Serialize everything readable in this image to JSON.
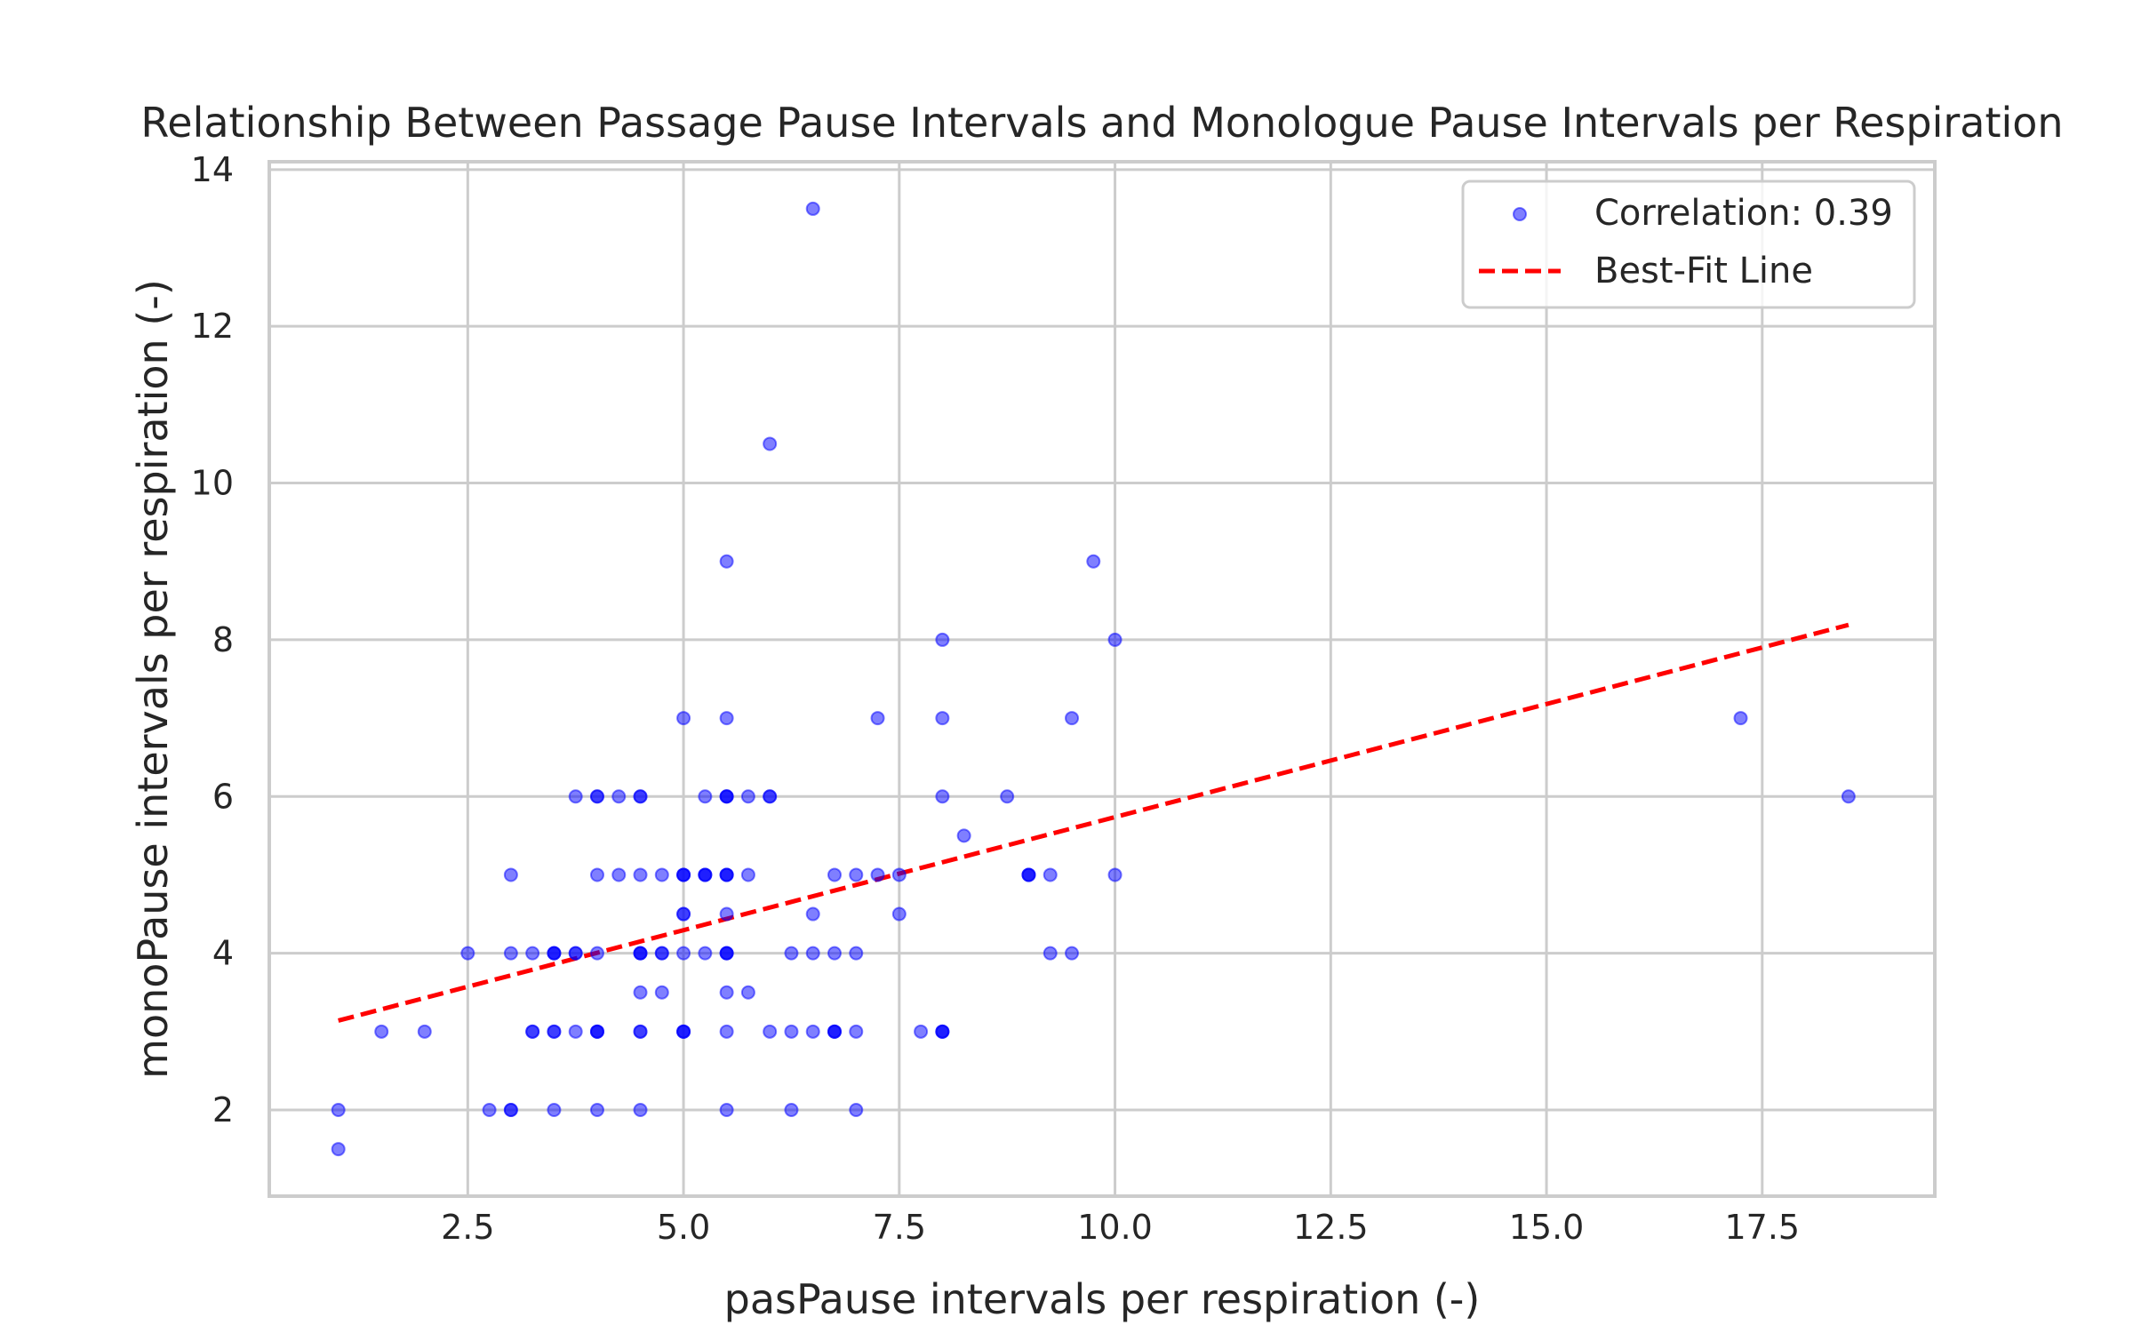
{
  "chart_data": {
    "type": "scatter",
    "title": "Relationship Between Passage Pause Intervals and Monologue Pause Intervals per Respiration",
    "xlabel": "pasPause intervals per respiration (-)",
    "ylabel": "monoPause intervals per respiration (-)",
    "xlim": [
      0.2,
      19.5
    ],
    "ylim": [
      0.9,
      14.1
    ],
    "xticks": [
      2.5,
      5.0,
      7.5,
      10.0,
      12.5,
      15.0,
      17.5
    ],
    "xtick_labels": [
      "2.5",
      "5.0",
      "7.5",
      "10.0",
      "12.5",
      "15.0",
      "17.5"
    ],
    "yticks": [
      2,
      4,
      6,
      8,
      10,
      12,
      14
    ],
    "ytick_labels": [
      "2",
      "4",
      "6",
      "8",
      "10",
      "12",
      "14"
    ],
    "grid": true,
    "legend_position": "top-right",
    "series": [
      {
        "name": "Correlation: 0.39",
        "kind": "scatter",
        "color": "#0000ff",
        "opacity": 0.5,
        "points": [
          [
            1.0,
            2.0
          ],
          [
            1.0,
            1.5
          ],
          [
            1.5,
            3.0
          ],
          [
            2.0,
            3.0
          ],
          [
            2.5,
            4.0
          ],
          [
            2.75,
            2.0
          ],
          [
            3.0,
            2.0
          ],
          [
            3.0,
            2.0
          ],
          [
            3.0,
            4.0
          ],
          [
            3.0,
            5.0
          ],
          [
            3.25,
            3.0
          ],
          [
            3.25,
            3.0
          ],
          [
            3.25,
            4.0
          ],
          [
            3.5,
            2.0
          ],
          [
            3.5,
            3.0
          ],
          [
            3.5,
            3.0
          ],
          [
            3.5,
            4.0
          ],
          [
            3.5,
            4.0
          ],
          [
            3.5,
            4.0
          ],
          [
            3.75,
            3.0
          ],
          [
            3.75,
            4.0
          ],
          [
            3.75,
            4.0
          ],
          [
            3.75,
            6.0
          ],
          [
            4.0,
            2.0
          ],
          [
            4.0,
            3.0
          ],
          [
            4.0,
            3.0
          ],
          [
            4.0,
            3.0
          ],
          [
            4.0,
            4.0
          ],
          [
            4.0,
            5.0
          ],
          [
            4.0,
            6.0
          ],
          [
            4.0,
            6.0
          ],
          [
            4.25,
            5.0
          ],
          [
            4.25,
            6.0
          ],
          [
            4.5,
            2.0
          ],
          [
            4.5,
            3.0
          ],
          [
            4.5,
            3.0
          ],
          [
            4.5,
            3.5
          ],
          [
            4.5,
            4.0
          ],
          [
            4.5,
            4.0
          ],
          [
            4.5,
            4.0
          ],
          [
            4.5,
            5.0
          ],
          [
            4.5,
            6.0
          ],
          [
            4.5,
            6.0
          ],
          [
            4.75,
            3.5
          ],
          [
            4.75,
            4.0
          ],
          [
            4.75,
            4.0
          ],
          [
            4.75,
            5.0
          ],
          [
            5.0,
            3.0
          ],
          [
            5.0,
            3.0
          ],
          [
            5.0,
            3.0
          ],
          [
            5.0,
            4.0
          ],
          [
            5.0,
            4.5
          ],
          [
            5.0,
            4.5
          ],
          [
            5.0,
            5.0
          ],
          [
            5.0,
            5.0
          ],
          [
            5.0,
            5.0
          ],
          [
            5.0,
            7.0
          ],
          [
            5.25,
            4.0
          ],
          [
            5.25,
            5.0
          ],
          [
            5.25,
            5.0
          ],
          [
            5.25,
            5.0
          ],
          [
            5.25,
            6.0
          ],
          [
            5.5,
            2.0
          ],
          [
            5.5,
            3.0
          ],
          [
            5.5,
            3.5
          ],
          [
            5.5,
            4.0
          ],
          [
            5.5,
            4.0
          ],
          [
            5.5,
            4.0
          ],
          [
            5.5,
            4.5
          ],
          [
            5.5,
            5.0
          ],
          [
            5.5,
            5.0
          ],
          [
            5.5,
            5.0
          ],
          [
            5.5,
            6.0
          ],
          [
            5.5,
            6.0
          ],
          [
            5.5,
            6.0
          ],
          [
            5.5,
            7.0
          ],
          [
            5.5,
            9.0
          ],
          [
            5.75,
            3.5
          ],
          [
            5.75,
            5.0
          ],
          [
            5.75,
            6.0
          ],
          [
            6.0,
            3.0
          ],
          [
            6.0,
            6.0
          ],
          [
            6.0,
            6.0
          ],
          [
            6.0,
            10.5
          ],
          [
            6.25,
            2.0
          ],
          [
            6.25,
            3.0
          ],
          [
            6.25,
            4.0
          ],
          [
            6.5,
            3.0
          ],
          [
            6.5,
            4.0
          ],
          [
            6.5,
            4.5
          ],
          [
            6.5,
            13.5
          ],
          [
            6.75,
            3.0
          ],
          [
            6.75,
            3.0
          ],
          [
            6.75,
            3.0
          ],
          [
            6.75,
            4.0
          ],
          [
            6.75,
            5.0
          ],
          [
            7.0,
            2.0
          ],
          [
            7.0,
            3.0
          ],
          [
            7.0,
            4.0
          ],
          [
            7.0,
            5.0
          ],
          [
            7.25,
            5.0
          ],
          [
            7.25,
            7.0
          ],
          [
            7.5,
            4.5
          ],
          [
            7.5,
            5.0
          ],
          [
            7.75,
            3.0
          ],
          [
            8.0,
            3.0
          ],
          [
            8.0,
            3.0
          ],
          [
            8.0,
            3.0
          ],
          [
            8.0,
            6.0
          ],
          [
            8.0,
            7.0
          ],
          [
            8.0,
            8.0
          ],
          [
            8.25,
            5.5
          ],
          [
            8.75,
            6.0
          ],
          [
            9.0,
            5.0
          ],
          [
            9.0,
            5.0
          ],
          [
            9.0,
            5.0
          ],
          [
            9.25,
            4.0
          ],
          [
            9.25,
            5.0
          ],
          [
            9.5,
            4.0
          ],
          [
            9.5,
            7.0
          ],
          [
            9.75,
            9.0
          ],
          [
            10.0,
            5.0
          ],
          [
            10.0,
            8.0
          ],
          [
            17.25,
            7.0
          ],
          [
            18.5,
            6.0
          ]
        ]
      },
      {
        "name": "Best-Fit Line",
        "kind": "line",
        "color": "#ff0000",
        "dashed": true,
        "points": [
          [
            1.0,
            3.14
          ],
          [
            18.5,
            8.19
          ]
        ]
      }
    ]
  }
}
